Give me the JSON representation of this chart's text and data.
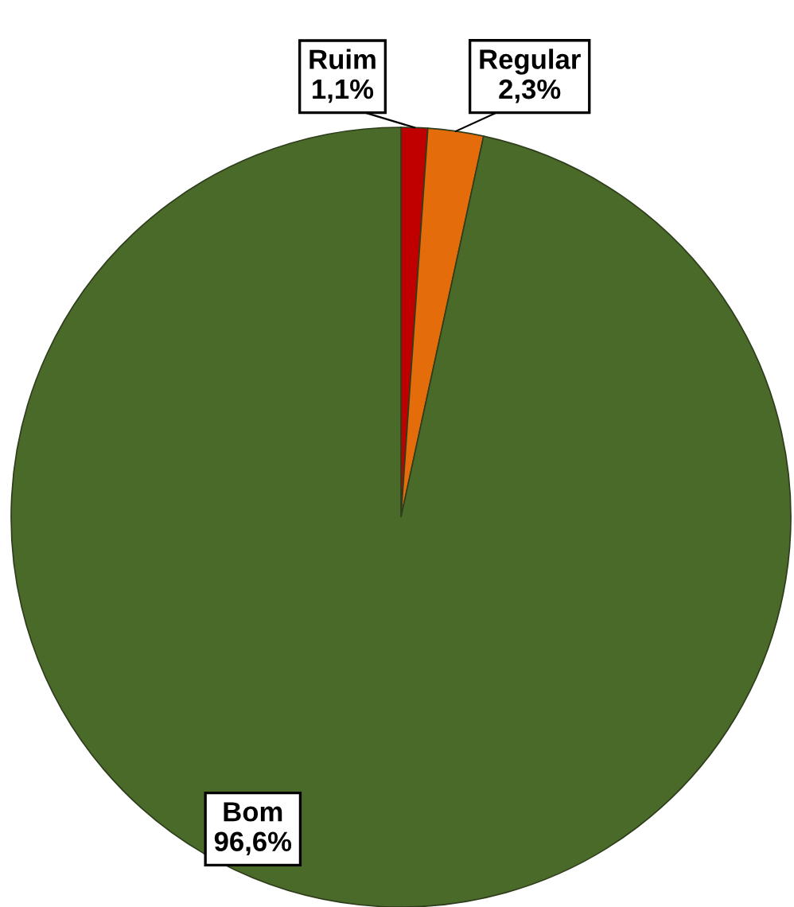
{
  "chart_data": {
    "type": "pie",
    "categories": [
      "Ruim",
      "Regular",
      "Bom"
    ],
    "values": [
      1.1,
      2.3,
      96.6
    ],
    "colors": [
      "#c00000",
      "#e46c0a",
      "#4a6a2a"
    ],
    "value_labels": [
      "1,1%",
      "2,3%",
      "96,6%"
    ],
    "legend": false
  }
}
